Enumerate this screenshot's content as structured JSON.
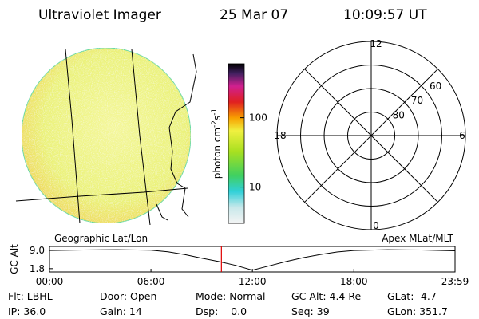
{
  "header": {
    "title": "Ultraviolet Imager",
    "date": "25 Mar 07",
    "time": "10:09:57 UT"
  },
  "colorbar": {
    "label": {
      "base": "photon cm",
      "exp1": "-2",
      "mid": "s",
      "exp2": "-1"
    },
    "scale": "log",
    "ylim": [
      3,
      600
    ],
    "yticks": [
      10,
      100
    ]
  },
  "polar": {
    "rlim": [
      90,
      50
    ],
    "lat_circles": [
      80,
      70,
      60,
      50
    ],
    "lat_labels": [
      80,
      70,
      60
    ],
    "mlt_labels": [
      12,
      6,
      0,
      18
    ]
  },
  "chart_data": {
    "type": "line",
    "left_label": "Geographic Lat/Lon",
    "right_label": "Apex MLat/MLT",
    "ylabel": "GC Alt",
    "x": [
      0,
      2,
      4,
      6,
      7,
      8,
      9,
      10,
      11,
      12,
      13,
      14,
      15,
      16,
      17,
      18,
      20,
      22,
      23.983
    ],
    "values": [
      8.9,
      9.1,
      9.2,
      9.0,
      8.4,
      7.3,
      5.9,
      4.6,
      3.1,
      1.2,
      2.9,
      4.6,
      6.1,
      7.3,
      8.3,
      8.9,
      9.2,
      9.1,
      8.8
    ],
    "color": "#000000",
    "xlim": [
      0,
      23.983
    ],
    "xticks": [
      {
        "value": 0,
        "label": "00:00"
      },
      {
        "value": 6,
        "label": "06:00"
      },
      {
        "value": 12,
        "label": "12:00"
      },
      {
        "value": 18,
        "label": "18:00"
      },
      {
        "value": 23.983,
        "label": "23:59"
      }
    ],
    "ylim": [
      0.5,
      10.5
    ],
    "yticks": [
      {
        "value": 9,
        "label": "9.0"
      },
      {
        "value": 1.8,
        "label": "1.8"
      }
    ],
    "marker_time": 10.166,
    "marker_color": "#e00000"
  },
  "info": {
    "rows": [
      [
        "Flt: LBHL",
        "Door: Open",
        "Mode: Normal",
        "GC Alt: 4.4 Re",
        "GLat: -4.7"
      ],
      [
        "IP: 36.0",
        "Gain: 14",
        "Dsp:    0.0",
        "Seq: 39",
        "GLon: 351.7"
      ]
    ]
  }
}
